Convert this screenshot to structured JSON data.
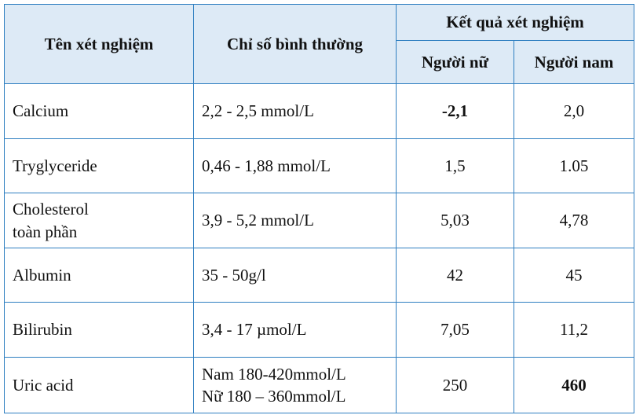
{
  "headers": {
    "test_name": "Tên xét nghiệm",
    "normal_range": "Chỉ số bình thường",
    "result_group": "Kết quả xét nghiệm",
    "female": "Người nữ",
    "male": "Người nam"
  },
  "rows": [
    {
      "name_lines": [
        "Calcium"
      ],
      "range_lines": [
        "2,2 - 2,5 mmol/L"
      ],
      "female": "-2,1",
      "male": "2,0",
      "female_bold": true,
      "male_bold": false
    },
    {
      "name_lines": [
        "Tryglyceride"
      ],
      "range_lines": [
        "0,46 - 1,88 mmol/L"
      ],
      "female": "1,5",
      "male": "1.05",
      "female_bold": false,
      "male_bold": false
    },
    {
      "name_lines": [
        "Cholesterol",
        "toàn phần"
      ],
      "range_lines": [
        "3,9 - 5,2 mmol/L"
      ],
      "female": "5,03",
      "male": "4,78",
      "female_bold": false,
      "male_bold": false
    },
    {
      "name_lines": [
        "Albumin"
      ],
      "range_lines": [
        "35 - 50g/l"
      ],
      "female": "42",
      "male": "45",
      "female_bold": false,
      "male_bold": false
    },
    {
      "name_lines": [
        "Bilirubin"
      ],
      "range_lines": [
        "3,4 - 17 µmol/L"
      ],
      "female": "7,05",
      "male": "11,2",
      "female_bold": false,
      "male_bold": false
    },
    {
      "name_lines": [
        "Uric acid"
      ],
      "range_lines": [
        "Nam 180-420mmol/L",
        "Nữ 180 – 360mmol/L"
      ],
      "female": "250",
      "male": "460",
      "female_bold": false,
      "male_bold": true
    }
  ]
}
